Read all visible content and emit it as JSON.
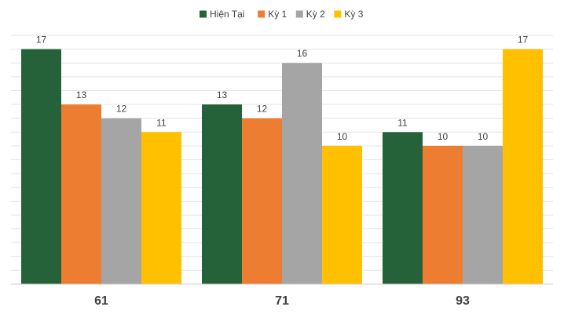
{
  "chart_data": {
    "type": "bar",
    "title": "",
    "xlabel": "",
    "ylabel": "",
    "categories": [
      "61",
      "71",
      "93"
    ],
    "series": [
      {
        "name": "Hiện Tại",
        "values": [
          17,
          13,
          11
        ],
        "color": "#25623a"
      },
      {
        "name": "Kỳ 1",
        "values": [
          13,
          12,
          10
        ],
        "color": "#ed7d31"
      },
      {
        "name": "Kỳ 2",
        "values": [
          12,
          16,
          10
        ],
        "color": "#a5a5a5"
      },
      {
        "name": "Kỳ 3",
        "values": [
          11,
          10,
          17
        ],
        "color": "#ffc000"
      }
    ],
    "ylim": [
      0,
      18
    ],
    "y_axis_visible": false,
    "grid": true,
    "legend": "top-center",
    "data_labels": true
  }
}
